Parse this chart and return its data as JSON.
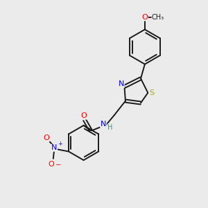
{
  "bg_color": "#ebebeb",
  "bond_color": "#1a1a1a",
  "bond_width": 1.4,
  "atom_colors": {
    "N": "#0000ff",
    "O": "#ff0000",
    "S": "#aaaa00",
    "C": "#1a1a1a",
    "H": "#558888"
  },
  "font_size": 8.0,
  "font_size_small": 7.0
}
